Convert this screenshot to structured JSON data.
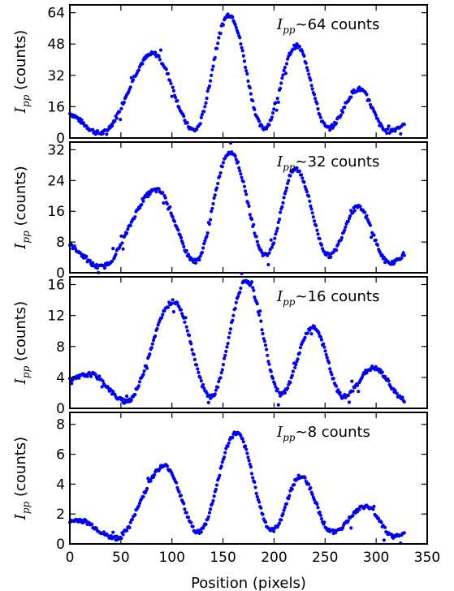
{
  "chart_data": [
    {
      "type": "scatter",
      "annotation": {
        "prefix": "I",
        "subscript": "pp",
        "text": "~64 counts"
      },
      "ylabel": {
        "prefix": "I",
        "subscript": "pp",
        "text": " (counts)"
      },
      "xlim": [
        0,
        350
      ],
      "ylim": [
        0,
        68
      ],
      "yticks": [
        0,
        16,
        32,
        48,
        64
      ],
      "color": "#0000ee",
      "peaks": [
        {
          "x": -5,
          "y": 13
        },
        {
          "x": 30,
          "y": 2.5
        },
        {
          "x": 82,
          "y": 43
        },
        {
          "x": 122,
          "y": 4
        },
        {
          "x": 156,
          "y": 63
        },
        {
          "x": 190,
          "y": 5
        },
        {
          "x": 222,
          "y": 47
        },
        {
          "x": 253,
          "y": 5
        },
        {
          "x": 283,
          "y": 25
        },
        {
          "x": 311,
          "y": 3.5
        },
        {
          "x": 340,
          "y": 10
        }
      ]
    },
    {
      "type": "scatter",
      "annotation": {
        "prefix": "I",
        "subscript": "pp",
        "text": "~32 counts"
      },
      "ylabel": {
        "prefix": "I",
        "subscript": "pp",
        "text": " (counts)"
      },
      "xlim": [
        0,
        350
      ],
      "ylim": [
        0,
        34
      ],
      "yticks": [
        0,
        8,
        16,
        24,
        32
      ],
      "color": "#0000ee",
      "peaks": [
        {
          "x": -5,
          "y": 7.5
        },
        {
          "x": 30,
          "y": 1.5
        },
        {
          "x": 85,
          "y": 21.5
        },
        {
          "x": 123,
          "y": 3
        },
        {
          "x": 157,
          "y": 31.5
        },
        {
          "x": 192,
          "y": 4.5
        },
        {
          "x": 221,
          "y": 27
        },
        {
          "x": 254,
          "y": 4.5
        },
        {
          "x": 282,
          "y": 17
        },
        {
          "x": 313,
          "y": 2.5
        },
        {
          "x": 340,
          "y": 7
        }
      ]
    },
    {
      "type": "scatter",
      "annotation": {
        "prefix": "I",
        "subscript": "pp",
        "text": "~16 counts"
      },
      "ylabel": {
        "prefix": "I",
        "subscript": "pp",
        "text": " (counts)"
      },
      "xlim": [
        0,
        350
      ],
      "ylim": [
        0,
        17
      ],
      "yticks": [
        0,
        4,
        8,
        12,
        16
      ],
      "color": "#0000ee",
      "peaks": [
        {
          "x": -5,
          "y": 3.5
        },
        {
          "x": 20,
          "y": 4.4
        },
        {
          "x": 55,
          "y": 0.9
        },
        {
          "x": 102,
          "y": 13.8
        },
        {
          "x": 138,
          "y": 1.5
        },
        {
          "x": 173,
          "y": 16.5
        },
        {
          "x": 207,
          "y": 1.8
        },
        {
          "x": 238,
          "y": 10.5
        },
        {
          "x": 268,
          "y": 1.5
        },
        {
          "x": 297,
          "y": 5.2
        },
        {
          "x": 330,
          "y": 1.0
        },
        {
          "x": 350,
          "y": 2
        }
      ]
    },
    {
      "type": "scatter",
      "annotation": {
        "prefix": "I",
        "subscript": "pp",
        "text": "~8 counts"
      },
      "ylabel": {
        "prefix": "I",
        "subscript": "pp",
        "text": " (counts)"
      },
      "xlim": [
        0,
        350
      ],
      "ylim": [
        0,
        8.8
      ],
      "yticks": [
        0,
        2,
        4,
        6,
        8
      ],
      "xticks": [
        0,
        50,
        100,
        150,
        200,
        250,
        300,
        350
      ],
      "xlabel": "Position (pixels)",
      "color": "#0000ee",
      "peaks": [
        {
          "x": -5,
          "y": 1.4
        },
        {
          "x": 8,
          "y": 1.6
        },
        {
          "x": 45,
          "y": 0.4
        },
        {
          "x": 93,
          "y": 5.2
        },
        {
          "x": 126,
          "y": 0.8
        },
        {
          "x": 163,
          "y": 7.4
        },
        {
          "x": 198,
          "y": 0.9
        },
        {
          "x": 226,
          "y": 4.5
        },
        {
          "x": 257,
          "y": 0.8
        },
        {
          "x": 290,
          "y": 2.5
        },
        {
          "x": 318,
          "y": 0.5
        },
        {
          "x": 345,
          "y": 1.0
        }
      ]
    }
  ]
}
